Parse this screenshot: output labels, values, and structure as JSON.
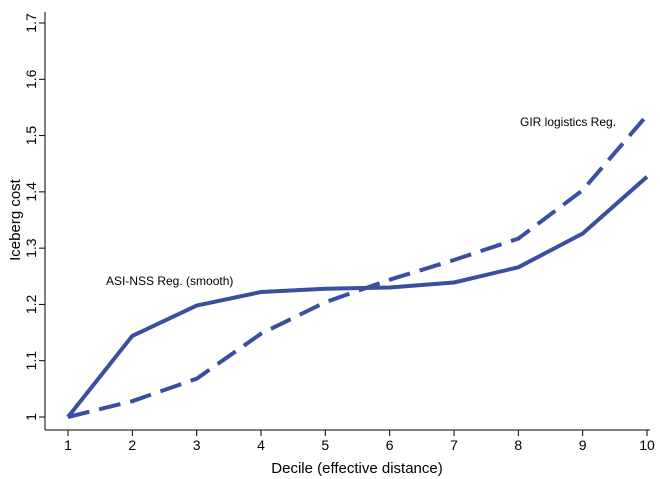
{
  "chart_data": {
    "type": "line",
    "title": "",
    "xlabel": "Decile (effective distance)",
    "ylabel": "Iceberg cost",
    "x": [
      1,
      2,
      3,
      4,
      5,
      6,
      7,
      8,
      9,
      10
    ],
    "x_ticks": [
      "1",
      "2",
      "3",
      "4",
      "5",
      "6",
      "7",
      "8",
      "9",
      "10"
    ],
    "y_ticks": [
      "1",
      "1.1",
      "1.2",
      "1.3",
      "1.4",
      "1.5",
      "1.6",
      "1.7"
    ],
    "xlim": [
      1,
      10
    ],
    "ylim": [
      1,
      1.7
    ],
    "grid": false,
    "legend": "none",
    "series": [
      {
        "label": "ASI-NSS Reg. (smooth)",
        "style": "solid",
        "color": "#3a4fa0",
        "values": [
          1.0,
          1.144,
          1.198,
          1.222,
          1.228,
          1.23,
          1.239,
          1.266,
          1.326,
          1.427
        ]
      },
      {
        "label": "GIR logistics Reg.",
        "style": "dashed",
        "color": "#3a4fa0",
        "values": [
          1.0,
          1.028,
          1.068,
          1.148,
          1.204,
          1.244,
          1.279,
          1.317,
          1.403,
          1.536
        ]
      }
    ]
  }
}
